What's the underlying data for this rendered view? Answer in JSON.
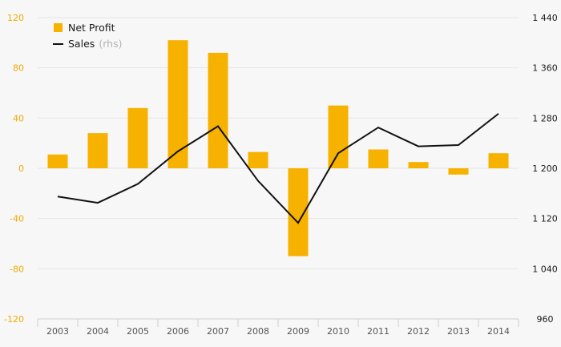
{
  "chart_data": {
    "type": "bar",
    "categories": [
      "2003",
      "2004",
      "2005",
      "2006",
      "2007",
      "2008",
      "2009",
      "2010",
      "2011",
      "2012",
      "2013",
      "2014"
    ],
    "series": [
      {
        "name": "Net Profit",
        "kind": "bar",
        "axis": "left",
        "color": "#f7b200",
        "values": [
          11,
          28,
          48,
          102,
          92,
          13,
          -70,
          50,
          15,
          5,
          -5,
          12
        ]
      },
      {
        "name": "Sales",
        "name_note": "(rhs)",
        "kind": "line",
        "axis": "right",
        "color": "#111111",
        "values": [
          1155,
          1145,
          1175,
          1227,
          1267,
          1180,
          1113,
          1224,
          1265,
          1235,
          1237,
          1287
        ]
      }
    ],
    "y_left": {
      "min": -120,
      "max": 120,
      "ticks": [
        "120",
        "80",
        "40",
        "0",
        "-40",
        "-80",
        "-120"
      ],
      "tick_values": [
        120,
        80,
        40,
        0,
        -40,
        -80,
        -120
      ],
      "color": "#f2a900"
    },
    "y_right": {
      "min": 960,
      "max": 1440,
      "ticks": [
        "1 440",
        "1 360",
        "1 280",
        "1 200",
        "1 120",
        "1 040",
        "960"
      ],
      "tick_values": [
        1440,
        1360,
        1280,
        1200,
        1120,
        1040,
        960
      ],
      "color": "#1a1a1a"
    },
    "grid": true,
    "legend": "top-left"
  }
}
